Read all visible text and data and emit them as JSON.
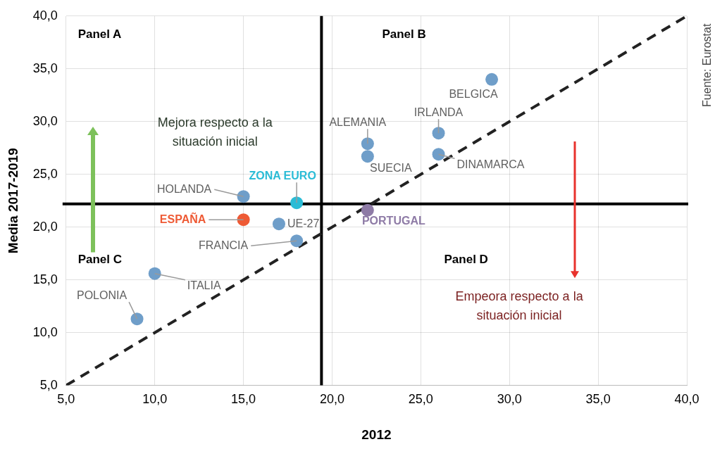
{
  "chart_data": {
    "type": "scatter",
    "xlabel": "2012",
    "ylabel": "Media 2017-2019",
    "xlim": [
      5,
      40
    ],
    "ylim": [
      5,
      40
    ],
    "xticks": [
      {
        "value": 5,
        "label": "5,0"
      },
      {
        "value": 10,
        "label": "10,0"
      },
      {
        "value": 15,
        "label": "15,0"
      },
      {
        "value": 20,
        "label": "20,0"
      },
      {
        "value": 25,
        "label": "25,0"
      },
      {
        "value": 30,
        "label": "30,0"
      },
      {
        "value": 35,
        "label": "35,0"
      },
      {
        "value": 40,
        "label": "40,0"
      }
    ],
    "yticks": [
      {
        "value": 5,
        "label": "5,0"
      },
      {
        "value": 10,
        "label": "10,0"
      },
      {
        "value": 15,
        "label": "15,0"
      },
      {
        "value": 20,
        "label": "20,0"
      },
      {
        "value": 25,
        "label": "25,0"
      },
      {
        "value": 30,
        "label": "30,0"
      },
      {
        "value": 35,
        "label": "35,0"
      },
      {
        "value": 40,
        "label": "40,0"
      }
    ],
    "grid": true,
    "legend": false,
    "marker": "circle",
    "series": [
      {
        "name": "POLONIA",
        "color": "#6f9ec9",
        "x": [
          9
        ],
        "values": [
          11.3
        ]
      },
      {
        "name": "ITALIA",
        "color": "#6f9ec9",
        "x": [
          10
        ],
        "values": [
          15.6
        ]
      },
      {
        "name": "HOLANDA",
        "color": "#6f9ec9",
        "x": [
          15
        ],
        "values": [
          22.9
        ]
      },
      {
        "name": "ESPAÑA",
        "color": "#ee5a35",
        "x": [
          15
        ],
        "values": [
          20.7
        ]
      },
      {
        "name": "ZONA EURO",
        "color": "#2bbcd6",
        "x": [
          18
        ],
        "values": [
          22.3
        ]
      },
      {
        "name": "UE-27",
        "color": "#6f9ec9",
        "x": [
          17
        ],
        "values": [
          20.3
        ]
      },
      {
        "name": "FRANCIA",
        "color": "#6f9ec9",
        "x": [
          18
        ],
        "values": [
          18.7
        ]
      },
      {
        "name": "ALEMANIA",
        "color": "#6f9ec9",
        "x": [
          22
        ],
        "values": [
          27.9
        ]
      },
      {
        "name": "SUECIA",
        "color": "#6f9ec9",
        "x": [
          22
        ],
        "values": [
          26.7
        ]
      },
      {
        "name": "PORTUGAL",
        "color": "#8e7ba6",
        "x": [
          22
        ],
        "values": [
          21.6
        ]
      },
      {
        "name": "IRLANDA",
        "color": "#6f9ec9",
        "x": [
          26
        ],
        "values": [
          28.9
        ]
      },
      {
        "name": "DINAMARCA",
        "color": "#6f9ec9",
        "x": [
          26
        ],
        "values": [
          26.9
        ]
      },
      {
        "name": "BELGICA",
        "color": "#6f9ec9",
        "x": [
          29
        ],
        "values": [
          34
        ]
      },
      {
        "type": "line",
        "color": "#222222",
        "x": [
          5,
          40
        ],
        "values": [
          5,
          40
        ],
        "marker": "none",
        "line_style": "dashed"
      }
    ],
    "ref_lines": [
      {
        "axis": "x",
        "value": 19.4,
        "color": "#000000"
      },
      {
        "axis": "y",
        "value": 22.2,
        "color": "#000000"
      }
    ],
    "annotations": [
      "Panel A",
      "Panel B",
      "Panel C",
      "Panel D",
      "Mejora respecto a la situación inicial",
      "Empeora respecto a la situación inicial",
      "Fuente: Eurostat"
    ]
  }
}
